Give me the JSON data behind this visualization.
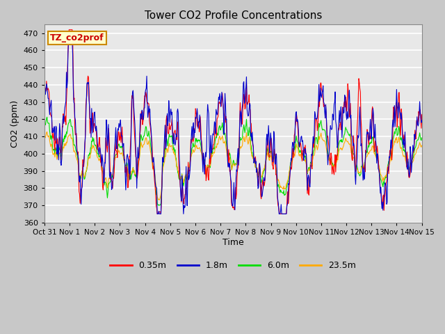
{
  "title": "Tower CO2 Profile Concentrations",
  "xlabel": "Time",
  "ylabel": "CO2 (ppm)",
  "ylim": [
    360,
    475
  ],
  "yticks": [
    360,
    370,
    380,
    390,
    400,
    410,
    420,
    430,
    440,
    450,
    460,
    470
  ],
  "series_labels": [
    "0.35m",
    "1.8m",
    "6.0m",
    "23.5m"
  ],
  "series_colors": [
    "#ff0000",
    "#0000cc",
    "#00dd00",
    "#ffaa00"
  ],
  "legend_label": "TZ_co2prof",
  "legend_bg": "#ffffcc",
  "legend_border": "#cc8800",
  "fig_bg": "#c8c8c8",
  "plot_bg": "#e8e8e8",
  "date_labels": [
    "Oct 31",
    "Nov 1",
    "Nov 2",
    "Nov 3",
    "Nov 4",
    "Nov 5",
    "Nov 6",
    "Nov 7",
    "Nov 8",
    "Nov 9",
    "Nov 10",
    "Nov 11",
    "Nov 12",
    "Nov 13",
    "Nov 14",
    "Nov 15"
  ],
  "date_positions": [
    0,
    1,
    2,
    3,
    4,
    5,
    6,
    7,
    8,
    9,
    10,
    11,
    12,
    13,
    14,
    15
  ],
  "seed": 12345
}
